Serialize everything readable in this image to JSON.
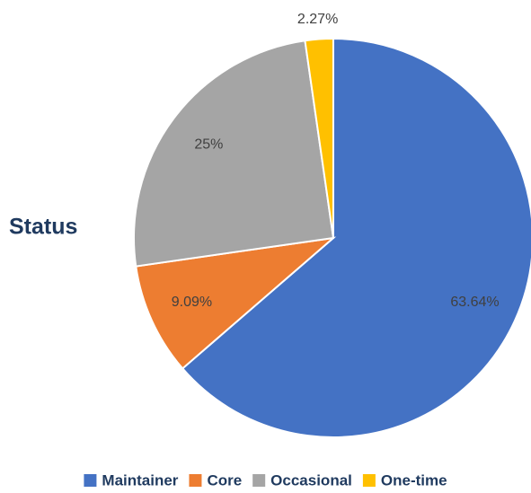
{
  "chart_data": {
    "type": "pie",
    "title": "Status",
    "categories": [
      "Maintainer",
      "Core",
      "Occasional",
      "One-time"
    ],
    "values": [
      63.64,
      9.09,
      25,
      2.27
    ],
    "value_labels": [
      "63.64%",
      "9.09%",
      "25%",
      "2.27%"
    ],
    "colors": [
      "#4472c4",
      "#ed7d31",
      "#a5a5a5",
      "#ffc000"
    ],
    "legend": "bottom"
  }
}
